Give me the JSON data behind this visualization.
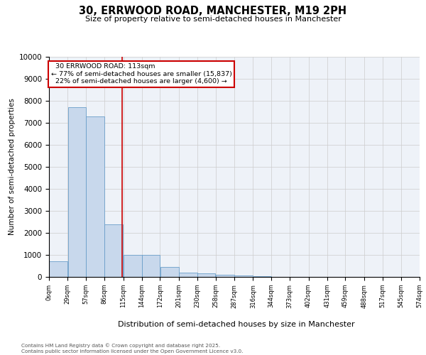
{
  "title": "30, ERRWOOD ROAD, MANCHESTER, M19 2PH",
  "subtitle": "Size of property relative to semi-detached houses in Manchester",
  "xlabel": "Distribution of semi-detached houses by size in Manchester",
  "ylabel": "Number of semi-detached properties",
  "property_label": "30 ERRWOOD ROAD: 113sqm",
  "pct_smaller": "77% of semi-detached houses are smaller (15,837)",
  "pct_larger": "22% of semi-detached houses are larger (4,600)",
  "bin_edges": [
    0,
    29,
    57,
    86,
    115,
    144,
    172,
    201,
    230,
    258,
    287,
    316,
    344,
    373,
    402,
    431,
    459,
    488,
    517,
    545,
    574
  ],
  "bin_labels": [
    "0sqm",
    "29sqm",
    "57sqm",
    "86sqm",
    "115sqm",
    "144sqm",
    "172sqm",
    "201sqm",
    "230sqm",
    "258sqm",
    "287sqm",
    "316sqm",
    "344sqm",
    "373sqm",
    "402sqm",
    "431sqm",
    "459sqm",
    "488sqm",
    "517sqm",
    "545sqm",
    "574sqm"
  ],
  "bar_heights": [
    700,
    7700,
    7300,
    2400,
    1000,
    1000,
    450,
    200,
    150,
    100,
    50,
    20,
    5,
    2,
    1,
    0,
    0,
    0,
    0,
    0
  ],
  "bar_color": "#c8d8ec",
  "bar_edge_color": "#6a9ec9",
  "vline_x": 113,
  "vline_color": "#cc0000",
  "annotation_box_color": "#cc0000",
  "ylim": [
    0,
    10000
  ],
  "yticks": [
    0,
    1000,
    2000,
    3000,
    4000,
    5000,
    6000,
    7000,
    8000,
    9000,
    10000
  ],
  "grid_color": "#cccccc",
  "bg_color": "#eef2f8",
  "footer_line1": "Contains HM Land Registry data © Crown copyright and database right 2025.",
  "footer_line2": "Contains public sector information licensed under the Open Government Licence v3.0."
}
